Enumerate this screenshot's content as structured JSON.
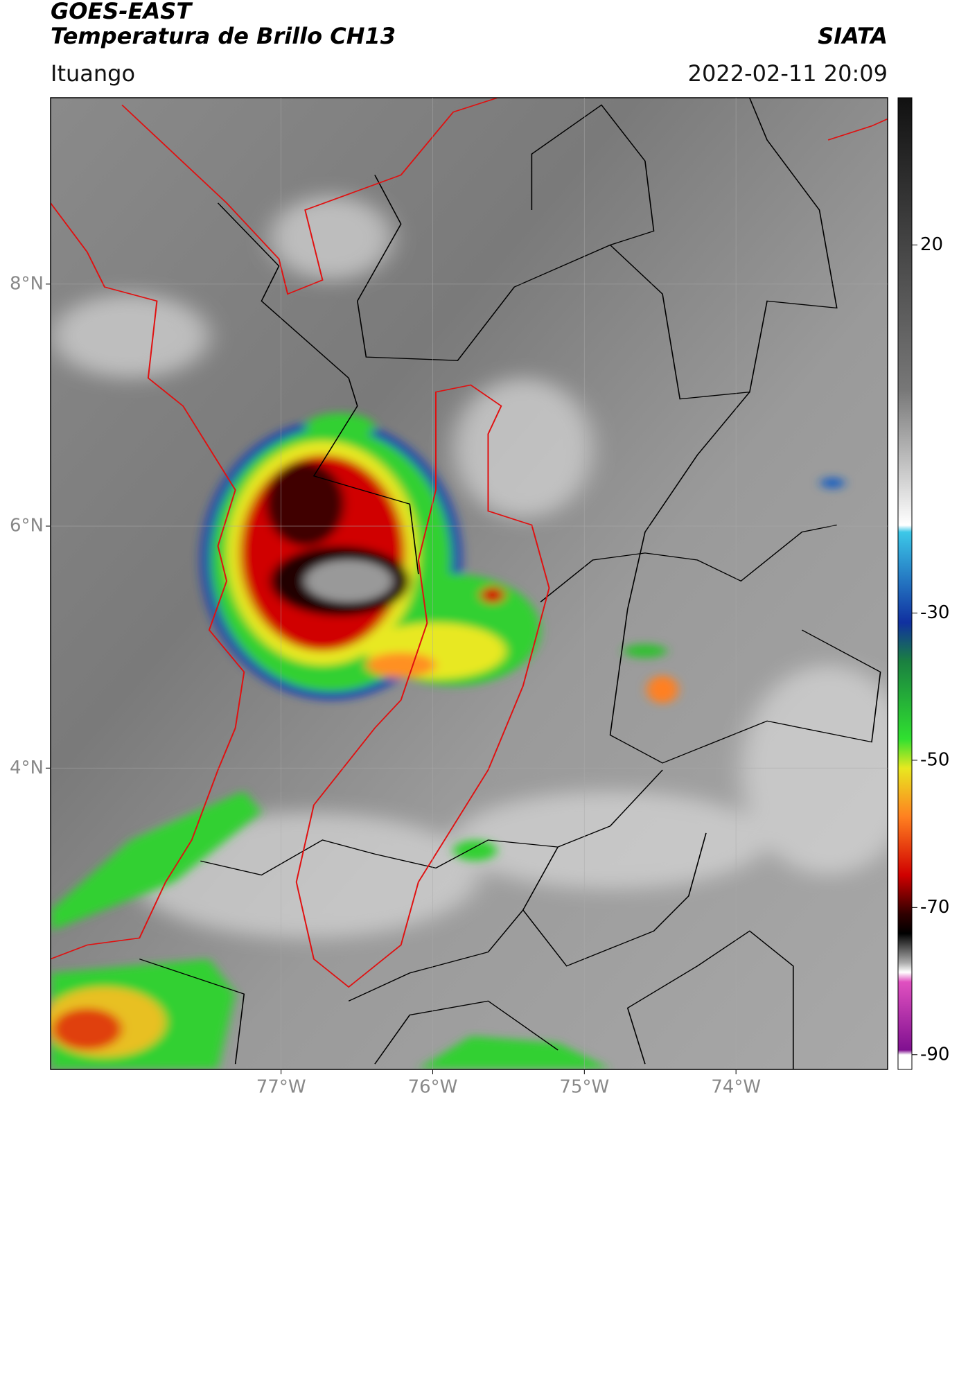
{
  "header": {
    "satellite": "GOES-EAST",
    "product": "Temperatura de Brillo CH13",
    "source": "SIATA",
    "region": "Ituango",
    "datetime": "2022-02-11 20:09"
  },
  "map": {
    "xlim": [
      -78.52,
      -73.0
    ],
    "ylim": [
      1.51,
      9.54
    ],
    "xticks": [
      {
        "value": -77,
        "label": "77°W"
      },
      {
        "value": -76,
        "label": "76°W"
      },
      {
        "value": -75,
        "label": "75°W"
      },
      {
        "value": -74,
        "label": "74°W"
      }
    ],
    "yticks": [
      {
        "value": 8,
        "label": "8°N"
      },
      {
        "value": 6,
        "label": "6°N"
      },
      {
        "value": 4,
        "label": "4°N"
      }
    ],
    "grid": true
  },
  "colorbar": {
    "lim": [
      -92,
      40
    ],
    "ticks": [
      20,
      -30,
      -50,
      -70,
      -90
    ]
  }
}
